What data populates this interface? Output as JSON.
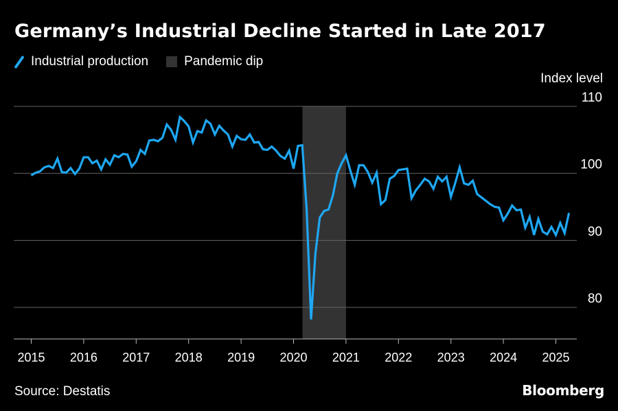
{
  "title": "Germany’s Industrial Decline Started in Late 2017",
  "legend": {
    "series_label": "Industrial production",
    "band_label": "Pandemic dip"
  },
  "source": "Source: Destatis",
  "brand": "Bloomberg",
  "colors": {
    "line": "#1ea7f2",
    "band": "#333333",
    "grid": "#666666",
    "background": "#000000"
  },
  "chart_data": {
    "type": "line",
    "title": "Germany’s Industrial Decline Started in Late 2017",
    "ylabel": "Index level",
    "ylim": [
      75,
      110
    ],
    "yticks": [
      80,
      90,
      100,
      110
    ],
    "xlim": [
      2015.0,
      2025.6
    ],
    "xticks": [
      2015,
      2016,
      2017,
      2018,
      2019,
      2020,
      2021,
      2022,
      2023,
      2024,
      2025
    ],
    "grid": "horizontal",
    "legend_placement": "top-left",
    "shaded_band": {
      "label": "Pandemic dip",
      "start": 2020.17,
      "end": 2021.0
    },
    "series": [
      {
        "name": "Industrial production",
        "start": "2015-01",
        "frequency": "monthly",
        "values": [
          99.7,
          100.1,
          100.3,
          100.9,
          101.1,
          100.8,
          102.2,
          100.2,
          100.1,
          100.8,
          99.9,
          100.7,
          102.4,
          102.4,
          101.5,
          101.9,
          100.6,
          102.1,
          101.3,
          102.7,
          102.4,
          102.9,
          102.8,
          101.0,
          101.8,
          103.5,
          102.9,
          104.9,
          105.0,
          104.8,
          105.3,
          107.3,
          106.5,
          105.0,
          108.4,
          107.8,
          107.0,
          104.6,
          106.3,
          106.1,
          107.9,
          107.4,
          105.8,
          107.1,
          106.4,
          105.8,
          104.0,
          105.6,
          105.1,
          105.0,
          105.8,
          104.6,
          104.7,
          103.6,
          103.5,
          104.0,
          103.4,
          102.6,
          102.2,
          103.4,
          100.7,
          104.1,
          104.2,
          94.6,
          78.2,
          88.0,
          93.4,
          94.4,
          94.6,
          96.7,
          100.0,
          101.5,
          102.7,
          100.4,
          98.3,
          101.2,
          101.2,
          100.2,
          98.6,
          100.1,
          95.4,
          96.0,
          99.2,
          99.6,
          100.5,
          100.6,
          100.7,
          96.3,
          97.5,
          98.3,
          99.2,
          98.8,
          97.7,
          99.5,
          98.8,
          99.5,
          96.5,
          98.6,
          100.9,
          98.5,
          98.3,
          98.9,
          96.9,
          96.4,
          95.9,
          95.4,
          95.0,
          94.9,
          93.0,
          94.0,
          95.2,
          94.5,
          94.6,
          91.9,
          93.5,
          90.8,
          93.2,
          91.3,
          90.9,
          92.0,
          90.8,
          92.6,
          91.1,
          94.1
        ]
      }
    ]
  }
}
